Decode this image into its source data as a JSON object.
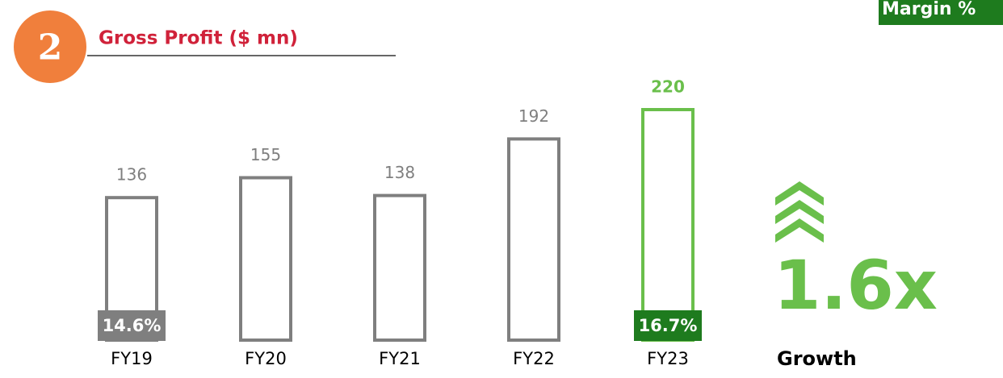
{
  "badge": "2",
  "chart_data": {
    "type": "bar",
    "title": "Gross Profit ($ mn)",
    "categories": [
      "FY19",
      "FY20",
      "FY21",
      "FY22",
      "FY23"
    ],
    "values": [
      136,
      155,
      138,
      192,
      220
    ],
    "colors": [
      "#7f7f7f",
      "#7f7f7f",
      "#7f7f7f",
      "#7f7f7f",
      "#6abf4b"
    ],
    "ylim": [
      0,
      220
    ],
    "margin": {
      "name": "Margin %",
      "values": [
        14.6,
        null,
        null,
        null,
        16.7
      ],
      "value_labels": [
        "14.6%",
        null,
        null,
        null,
        "16.7%"
      ],
      "colors": [
        "#7f7f7f",
        null,
        null,
        null,
        "#1e7b1e"
      ]
    }
  },
  "callout": {
    "value": "1.6x",
    "label": "Growth"
  }
}
